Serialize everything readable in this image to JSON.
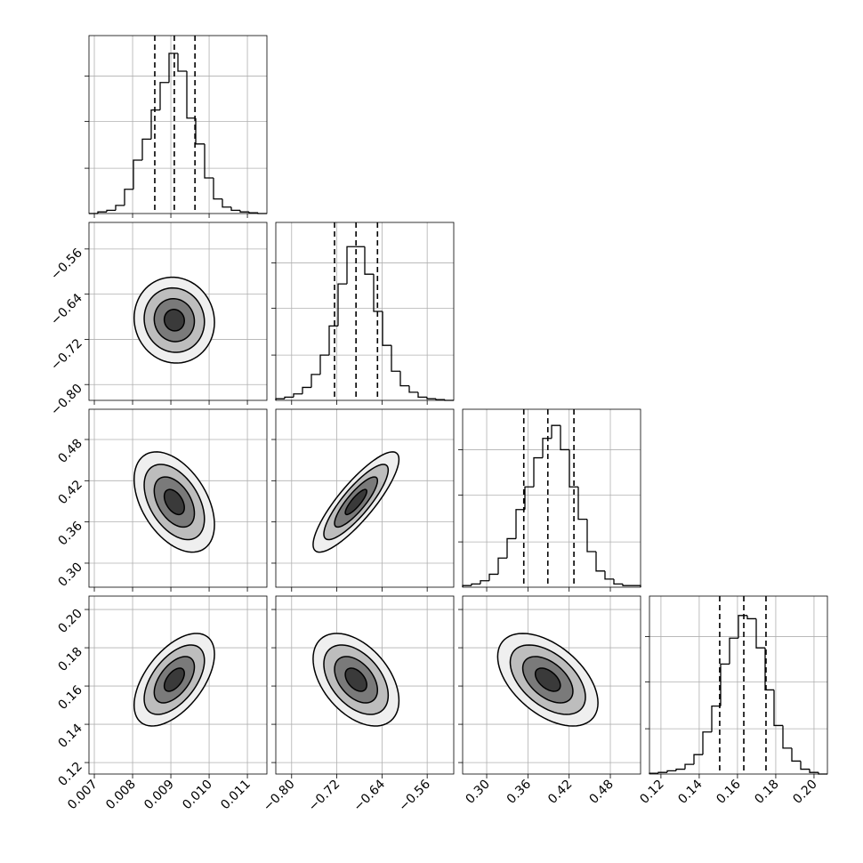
{
  "chart_data": {
    "type": "corner",
    "grid": true,
    "contour_levels": [
      0.5,
      1,
      1.5,
      2
    ],
    "contour_fills": [
      "#3a3a3a",
      "#7a7a7a",
      "#bdbdbd",
      "#efefef"
    ],
    "hist_ylim": [
      0,
      1.1
    ],
    "hist_yticks": [
      0.28,
      0.57,
      0.85
    ],
    "params": [
      {
        "xlim": [
          0.00686,
          0.01151
        ],
        "xticks": [
          0.007,
          0.008,
          0.009,
          {
            "value": 0.01,
            "label": "0.010"
          },
          0.011
        ],
        "quantiles": [
          0.00858,
          0.00909,
          0.00963
        ],
        "bins": [
          0.00686,
          0.0070925,
          0.007325,
          0.0075575,
          0.00779,
          0.0080225,
          0.008255,
          0.0084875,
          0.00872,
          0.0089525,
          0.009185,
          0.0094175,
          0.00965,
          0.0098825,
          0.010115,
          0.0103475,
          0.01058,
          0.0108125,
          0.011045,
          0.0112775,
          0.01151
        ],
        "counts": [
          0,
          0.01,
          0.02,
          0.05,
          0.15,
          0.33,
          0.46,
          0.64,
          0.81,
          0.99,
          0.88,
          0.59,
          0.43,
          0.22,
          0.09,
          0.04,
          0.02,
          0.01,
          0.005,
          0
        ]
      },
      {
        "xlim": [
          -0.828,
          -0.513
        ],
        "xticks": [
          {
            "value": -0.8,
            "label": "−0.80"
          },
          {
            "value": -0.72,
            "label": "−0.72"
          },
          {
            "value": -0.64,
            "label": "−0.64"
          },
          {
            "value": -0.56,
            "label": "−0.56"
          }
        ],
        "quantiles": [
          -0.724,
          -0.686,
          -0.648
        ],
        "bins": [
          -0.828,
          -0.81225,
          -0.7965,
          -0.78075,
          -0.765,
          -0.74925,
          -0.7335,
          -0.71775,
          -0.702,
          -0.68625,
          -0.6705,
          -0.65475,
          -0.639,
          -0.62325,
          -0.6075,
          -0.59175,
          -0.576,
          -0.56025,
          -0.5445,
          -0.52875,
          -0.513
        ],
        "counts": [
          0.01,
          0.02,
          0.04,
          0.08,
          0.16,
          0.28,
          0.46,
          0.72,
          0.95,
          0.95,
          0.78,
          0.55,
          0.34,
          0.18,
          0.09,
          0.05,
          0.02,
          0.01,
          0.005,
          0
        ]
      },
      {
        "xlim": [
          0.265,
          0.524
        ],
        "xticks": [
          {
            "value": 0.3,
            "label": "0.30"
          },
          0.36,
          0.42,
          0.48
        ],
        "quantiles": [
          0.354,
          0.389,
          0.427
        ],
        "bins": [
          0.265,
          0.27795,
          0.2909,
          0.30385,
          0.3168,
          0.32975,
          0.3427,
          0.35565,
          0.3686,
          0.38155,
          0.3945,
          0.40745,
          0.4204,
          0.43335,
          0.4463,
          0.45925,
          0.4722,
          0.48515,
          0.4981,
          0.51105,
          0.524
        ],
        "counts": [
          0.01,
          0.02,
          0.04,
          0.08,
          0.18,
          0.3,
          0.48,
          0.62,
          0.8,
          0.92,
          1.0,
          0.85,
          0.62,
          0.42,
          0.22,
          0.1,
          0.05,
          0.02,
          0.01,
          0.01
        ]
      },
      {
        "xlim": [
          0.114,
          0.207
        ],
        "xticks": [
          0.12,
          0.14,
          0.16,
          0.18,
          {
            "value": 0.2,
            "label": "0.20"
          }
        ],
        "quantiles": [
          0.1507,
          0.1633,
          0.1749
        ],
        "bins": [
          0.114,
          0.11865,
          0.1233,
          0.12795,
          0.1326,
          0.13725,
          0.1419,
          0.14655,
          0.1512,
          0.15585,
          0.1605,
          0.16515,
          0.1698,
          0.17445,
          0.1791,
          0.18375,
          0.1884,
          0.19305,
          0.1977,
          0.20235,
          0.207
        ],
        "counts": [
          0.005,
          0.01,
          0.02,
          0.03,
          0.06,
          0.12,
          0.26,
          0.42,
          0.68,
          0.84,
          0.98,
          0.96,
          0.78,
          0.52,
          0.3,
          0.16,
          0.08,
          0.03,
          0.01,
          0
        ]
      }
    ],
    "pairs": [
      [
        -0.05
      ],
      [
        -0.45,
        0.85
      ],
      [
        0.55,
        -0.45,
        -0.5
      ]
    ]
  }
}
